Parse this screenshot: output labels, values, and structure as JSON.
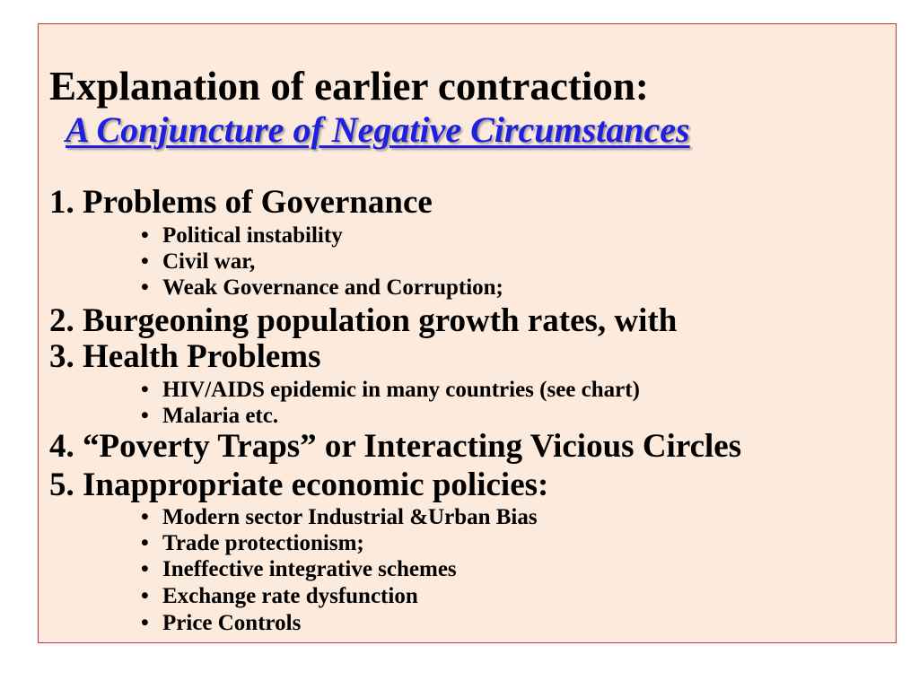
{
  "slide": {
    "title": "Explanation of earlier contraction:",
    "subtitle": "A Conjuncture of Negative Circumstances",
    "items": [
      {
        "text": "1. Problems of Governance",
        "bullets": [
          "Political instability",
          "Civil war,",
          "Weak Governance and Corruption;"
        ]
      },
      {
        "text": "2. Burgeoning population growth rates, with",
        "bullets": []
      },
      {
        "text": "3. Health Problems",
        "bullets": [
          "HIV/AIDS epidemic in many countries (see chart)",
          "Malaria etc."
        ]
      },
      {
        "text": "4. “Poverty Traps” or Interacting Vicious Circles",
        "bullets": []
      },
      {
        "text": "5. Inappropriate economic policies:",
        "bullets": [
          "Modern sector Industrial &Urban Bias",
          "Trade protectionism;",
          "Ineffective integrative schemes",
          "Exchange rate dysfunction",
          "Price Controls"
        ]
      }
    ],
    "bullet_glyph": "•",
    "colors": {
      "background": "#fcebdd",
      "border": "#c8343c",
      "subtitle": "#1f1fe0"
    }
  }
}
